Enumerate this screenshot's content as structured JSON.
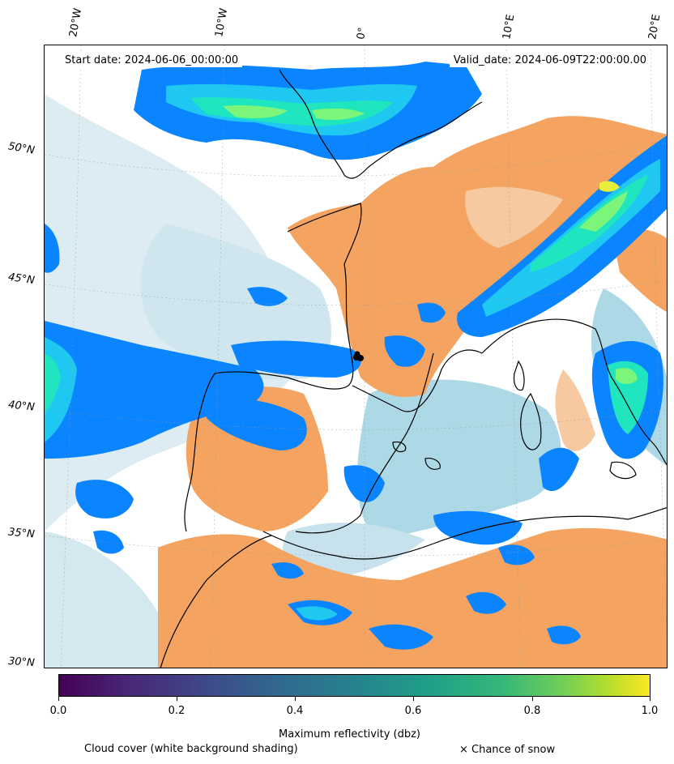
{
  "header": {
    "start_date": "Start date: 2024-06-06_00:00:00",
    "valid_date": "Valid_date: 2024-06-09T22:00:00.00"
  },
  "map": {
    "longitude_labels": [
      "20°W",
      "10°W",
      "0°",
      "10°E",
      "20°E"
    ],
    "latitude_labels": [
      "50°N",
      "45°N",
      "40°N",
      "35°N",
      "30°N"
    ],
    "colors": {
      "cloud_light": "#cfe6ee",
      "cloud_blue": "#add8e6",
      "land_dry": "#f4a460",
      "land_dry_light": "#f6c9a0",
      "refl_blue": "#0a84ff",
      "refl_cyan": "#1ec8f0",
      "refl_teal": "#20e6c0",
      "refl_green": "#7cf57a",
      "refl_yellow": "#e8ef3a",
      "coast": "#000000"
    }
  },
  "colorbar": {
    "title": "Maximum reflectivity (dbz)",
    "ticks": [
      "0.0",
      "0.2",
      "0.4",
      "0.6",
      "0.8",
      "1.0"
    ],
    "colormap": "viridis"
  },
  "footer": {
    "cloud_cover_label": "Cloud cover (white background shading)",
    "snow_label": "× Chance of snow"
  }
}
